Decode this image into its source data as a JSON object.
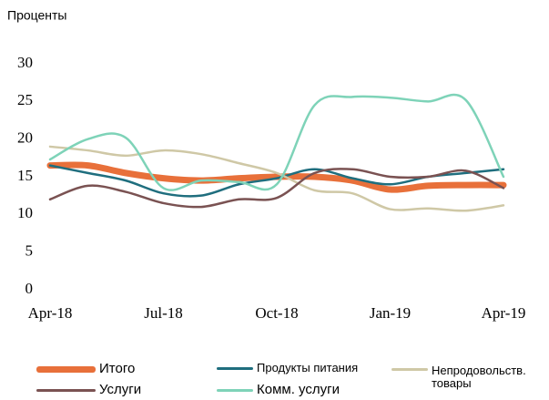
{
  "chart_data": {
    "type": "line",
    "title": "Проценты",
    "categories": [
      "Apr-18",
      null,
      null,
      "Jul-18",
      null,
      null,
      "Oct-18",
      null,
      null,
      "Jan-19",
      null,
      null,
      "Apr-19"
    ],
    "ylim": [
      0,
      30
    ],
    "yticks": [
      0,
      5,
      10,
      15,
      20,
      25,
      30
    ],
    "grid": false,
    "series": [
      {
        "name": "Итого",
        "color": "#e8703a",
        "values": [
          16.5,
          16.5,
          15.5,
          14.8,
          14.5,
          14.8,
          15,
          15,
          14.5,
          13.3,
          13.8,
          13.9,
          13.9
        ]
      },
      {
        "name": "Продукты питания",
        "color": "#1f6e7e",
        "values": [
          16.5,
          15.5,
          14.5,
          12.8,
          12.5,
          14,
          14.8,
          16,
          14.8,
          14,
          15,
          15.5,
          16
        ]
      },
      {
        "name": "Непродовольств. товары",
        "color": "#cfc8a6",
        "values": [
          19,
          18.5,
          17.8,
          18.5,
          18,
          16.8,
          15.5,
          13.2,
          12.8,
          10.7,
          10.8,
          10.5,
          11.2
        ]
      },
      {
        "name": "Услуги",
        "color": "#7a5252",
        "values": [
          12,
          13.8,
          13,
          11.5,
          11,
          12,
          12.2,
          15.5,
          16,
          15,
          15,
          15.8,
          13.5
        ]
      },
      {
        "name": "Комм. услуги",
        "color": "#7ed3b8",
        "values": [
          17.3,
          20,
          20.2,
          13.5,
          14.5,
          14.3,
          14,
          24.5,
          25.6,
          25.5,
          25,
          25.2,
          15
        ]
      }
    ]
  }
}
